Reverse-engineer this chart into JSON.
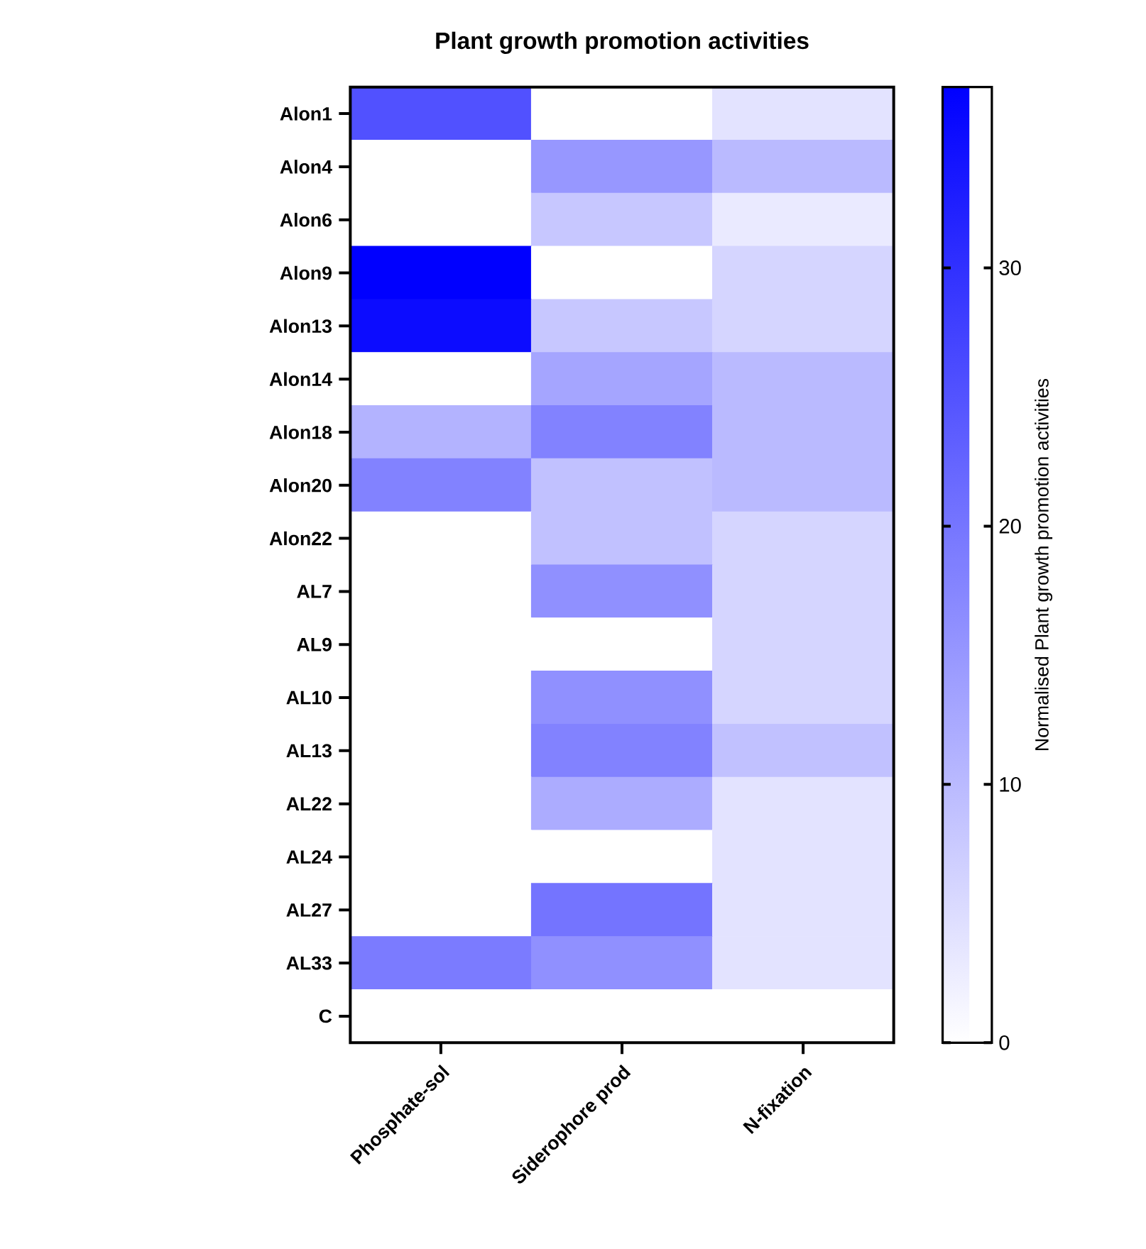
{
  "chart_data": {
    "type": "heatmap",
    "title": "Plant growth promotion activities",
    "categories": [
      "Phosphate-sol",
      "Siderophore prod",
      "N-fixation"
    ],
    "y_categories": [
      "Alon1",
      "Alon4",
      "Alon6",
      "Alon9",
      "Alon13",
      "Alon14",
      "Alon18",
      "Alon20",
      "Alon22",
      "AL7",
      "AL9",
      "AL10",
      "AL13",
      "AL22",
      "AL24",
      "AL27",
      "AL33",
      "C"
    ],
    "cells": [
      [
        25,
        0,
        4
      ],
      [
        0,
        15,
        10
      ],
      [
        0,
        8,
        3
      ],
      [
        37,
        0,
        6
      ],
      [
        35,
        8,
        6
      ],
      [
        0,
        13,
        10
      ],
      [
        11,
        18,
        10
      ],
      [
        18,
        9,
        10
      ],
      [
        0,
        9,
        6
      ],
      [
        0,
        16,
        6
      ],
      [
        0,
        0,
        6
      ],
      [
        0,
        16,
        6
      ],
      [
        0,
        18,
        9
      ],
      [
        0,
        12,
        4
      ],
      [
        0,
        0,
        4
      ],
      [
        0,
        20,
        4
      ],
      [
        19,
        16,
        4
      ],
      [
        0,
        0,
        0
      ]
    ],
    "clim": [
      0,
      37
    ],
    "cticks": [
      0,
      10,
      20,
      30
    ],
    "clabel": "Normalised Plant growth promotion activities"
  }
}
